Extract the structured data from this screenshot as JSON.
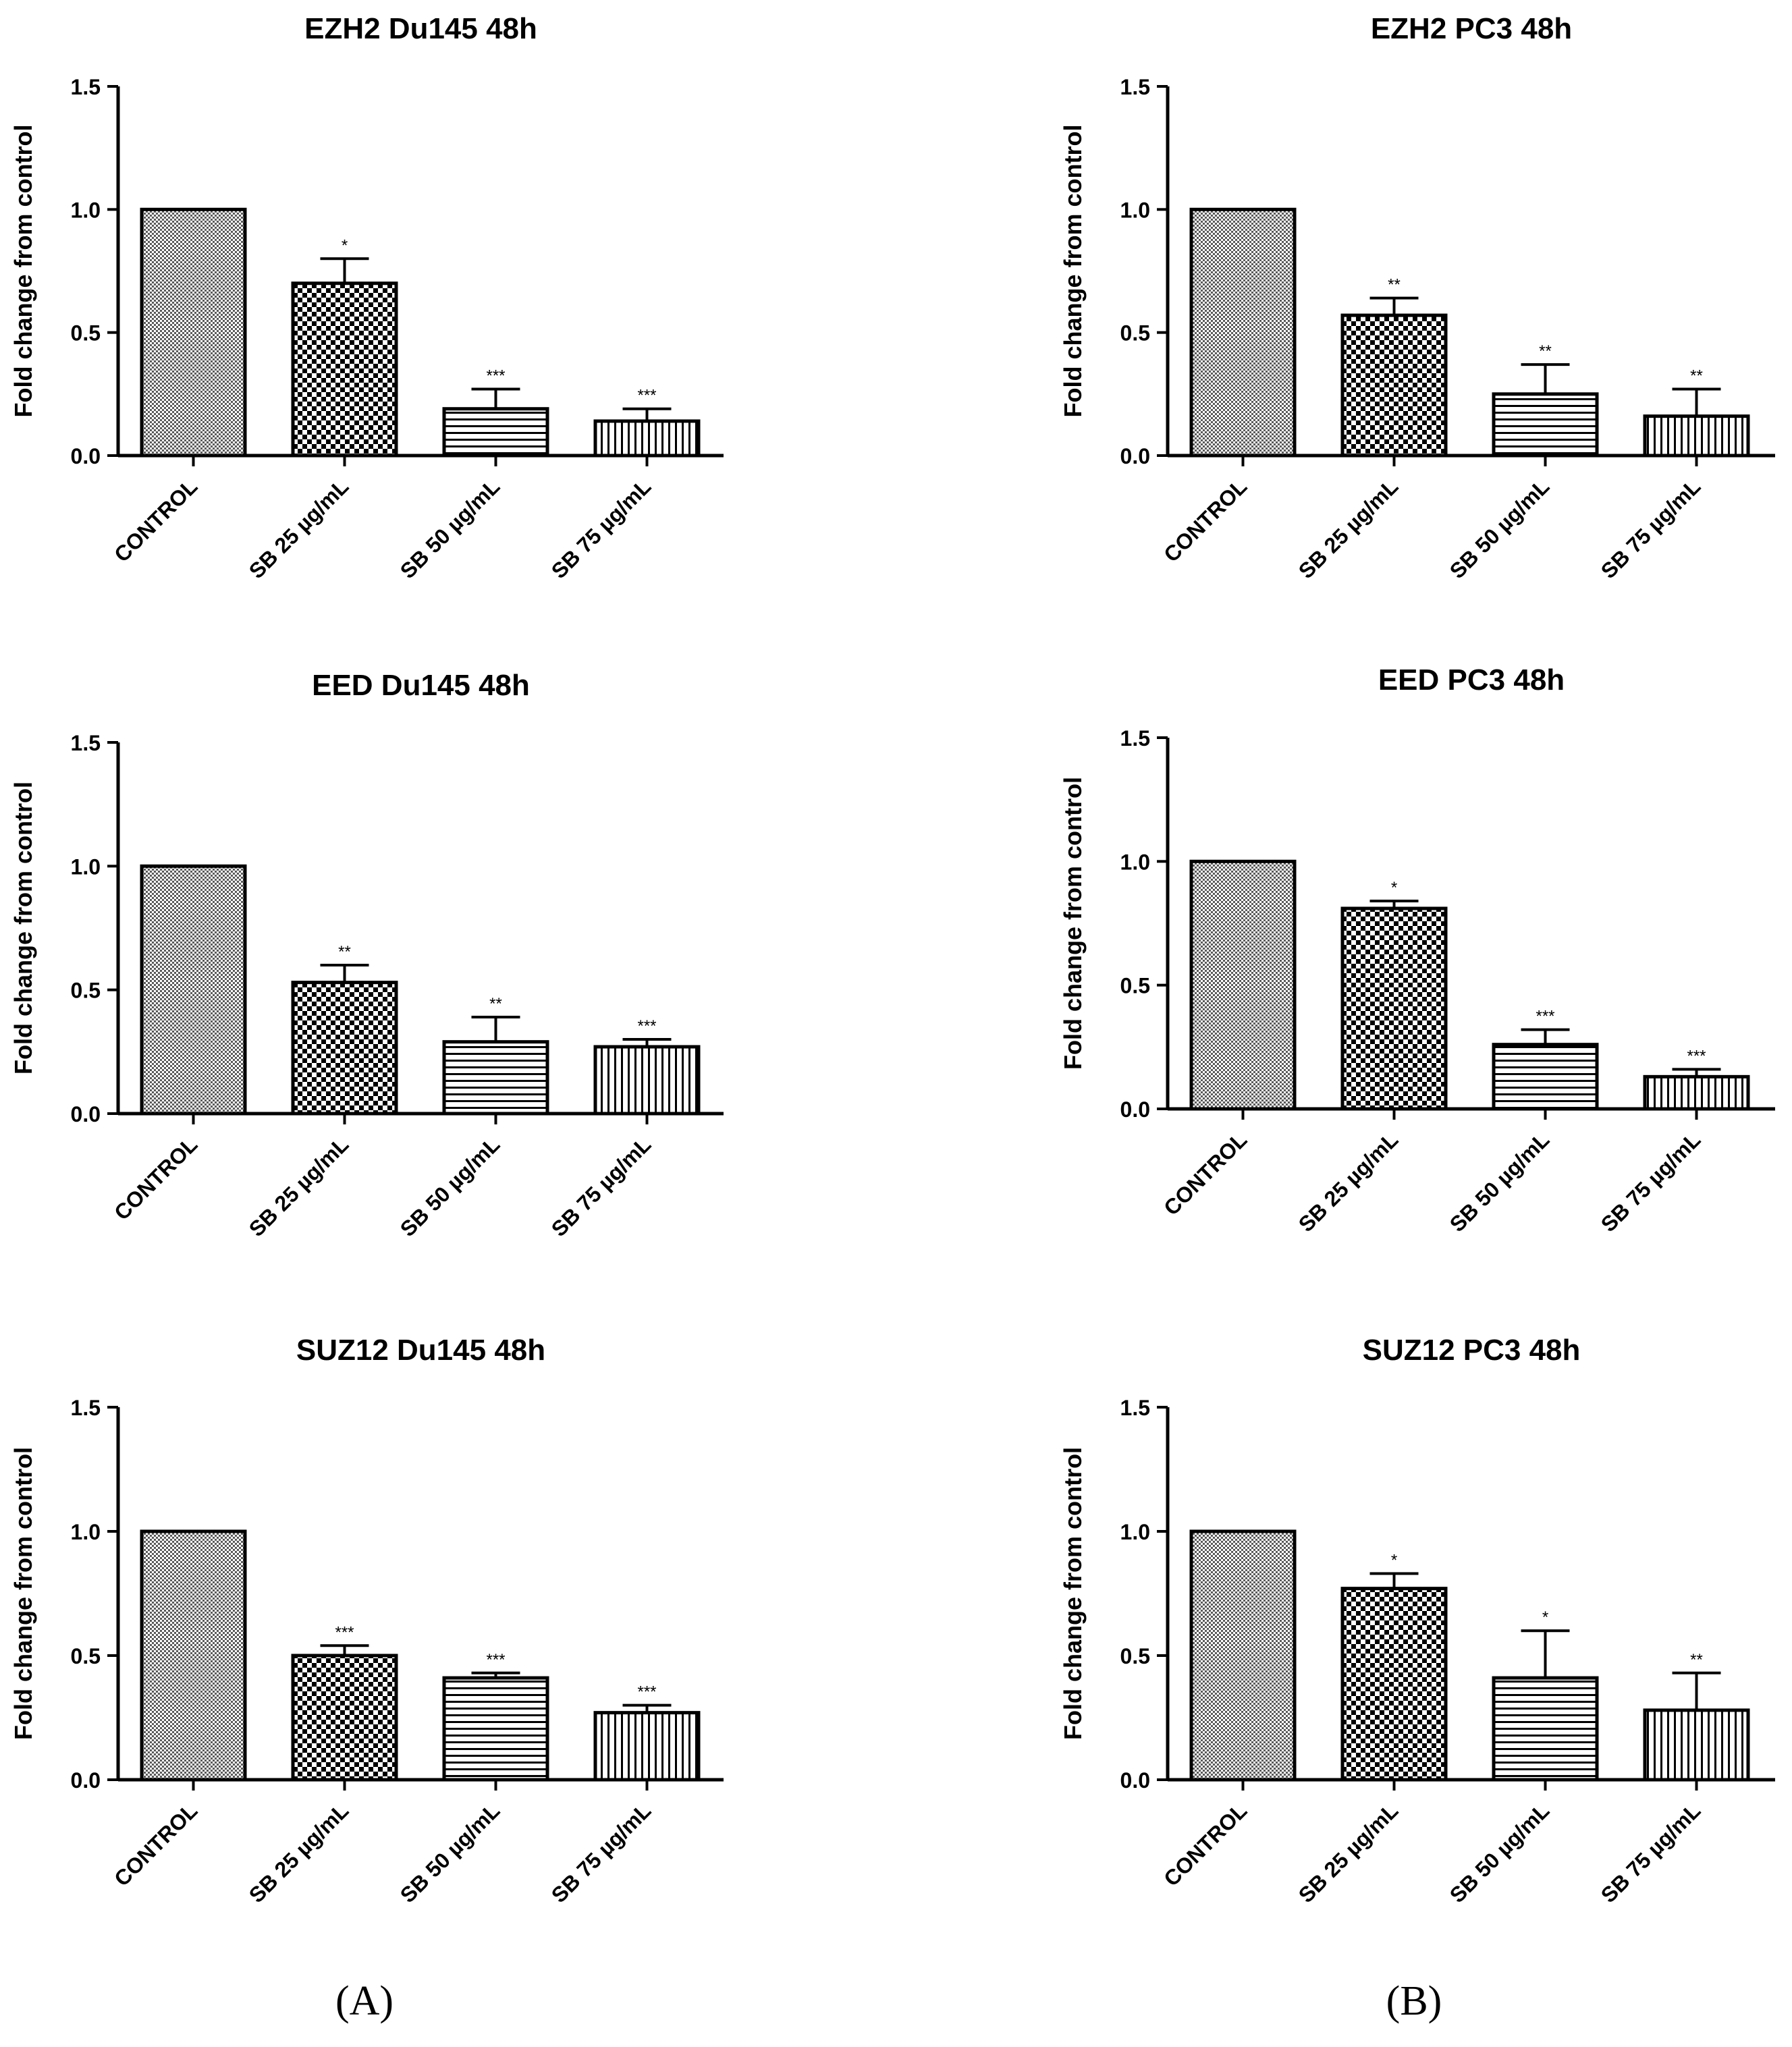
{
  "chart_data": [
    {
      "type": "bar",
      "title": "EZH2 Du145 48h",
      "xlabel": "",
      "ylabel": "Fold change from control",
      "ylim": [
        0,
        1.5
      ],
      "yticks": [
        "0.0",
        "0.5",
        "1.0",
        "1.5"
      ],
      "categories": [
        "CONTROL",
        "SB 25 µg/mL",
        "SB 50 µg/mL",
        "SB 75 µg/mL"
      ],
      "values": [
        1.0,
        0.7,
        0.19,
        0.14
      ],
      "errors": [
        0,
        0.1,
        0.08,
        0.05
      ],
      "significance": [
        "",
        "*",
        "***",
        "***"
      ]
    },
    {
      "type": "bar",
      "title": "EZH2 PC3 48h",
      "xlabel": "",
      "ylabel": "Fold change from control",
      "ylim": [
        0,
        1.5
      ],
      "yticks": [
        "0.0",
        "0.5",
        "1.0",
        "1.5"
      ],
      "categories": [
        "CONTROL",
        "SB 25 µg/mL",
        "SB 50 µg/mL",
        "SB 75 µg/mL"
      ],
      "values": [
        1.0,
        0.57,
        0.25,
        0.16
      ],
      "errors": [
        0,
        0.07,
        0.12,
        0.11
      ],
      "significance": [
        "",
        "**",
        "**",
        "**"
      ]
    },
    {
      "type": "bar",
      "title": "EED Du145 48h",
      "xlabel": "",
      "ylabel": "Fold change from control",
      "ylim": [
        0,
        1.5
      ],
      "yticks": [
        "0.0",
        "0.5",
        "1.0",
        "1.5"
      ],
      "categories": [
        "CONTROL",
        "SB 25 µg/mL",
        "SB 50 µg/mL",
        "SB 75 µg/mL"
      ],
      "values": [
        1.0,
        0.53,
        0.29,
        0.27
      ],
      "errors": [
        0,
        0.07,
        0.1,
        0.03
      ],
      "significance": [
        "",
        "**",
        "**",
        "***"
      ]
    },
    {
      "type": "bar",
      "title": "EED PC3 48h",
      "xlabel": "",
      "ylabel": "Fold change from control",
      "ylim": [
        0,
        1.5
      ],
      "yticks": [
        "0.0",
        "0.5",
        "1.0",
        "1.5"
      ],
      "categories": [
        "CONTROL",
        "SB 25 µg/mL",
        "SB 50 µg/mL",
        "SB 75 µg/mL"
      ],
      "values": [
        1.0,
        0.81,
        0.26,
        0.13
      ],
      "errors": [
        0,
        0.03,
        0.06,
        0.03
      ],
      "significance": [
        "",
        "*",
        "***",
        "***"
      ]
    },
    {
      "type": "bar",
      "title": "SUZ12 Du145 48h",
      "xlabel": "",
      "ylabel": "Fold change from control",
      "ylim": [
        0,
        1.5
      ],
      "yticks": [
        "0.0",
        "0.5",
        "1.0",
        "1.5"
      ],
      "categories": [
        "CONTROL",
        "SB 25 µg/mL",
        "SB 50 µg/mL",
        "SB 75 µg/mL"
      ],
      "values": [
        1.0,
        0.5,
        0.41,
        0.27
      ],
      "errors": [
        0,
        0.04,
        0.02,
        0.03
      ],
      "significance": [
        "",
        "***",
        "***",
        "***"
      ]
    },
    {
      "type": "bar",
      "title": "SUZ12 PC3 48h",
      "xlabel": "",
      "ylabel": "Fold change from control",
      "ylim": [
        0,
        1.5
      ],
      "yticks": [
        "0.0",
        "0.5",
        "1.0",
        "1.5"
      ],
      "categories": [
        "CONTROL",
        "SB 25 µg/mL",
        "SB 50 µg/mL",
        "SB 75 µg/mL"
      ],
      "values": [
        1.0,
        0.77,
        0.41,
        0.28
      ],
      "errors": [
        0,
        0.06,
        0.19,
        0.15
      ],
      "significance": [
        "",
        "*",
        "*",
        "**"
      ]
    }
  ],
  "panel_labels": [
    "(A)",
    "(B)"
  ],
  "colors": {
    "bar_fill": "#ffffff",
    "ink": "#000000"
  }
}
